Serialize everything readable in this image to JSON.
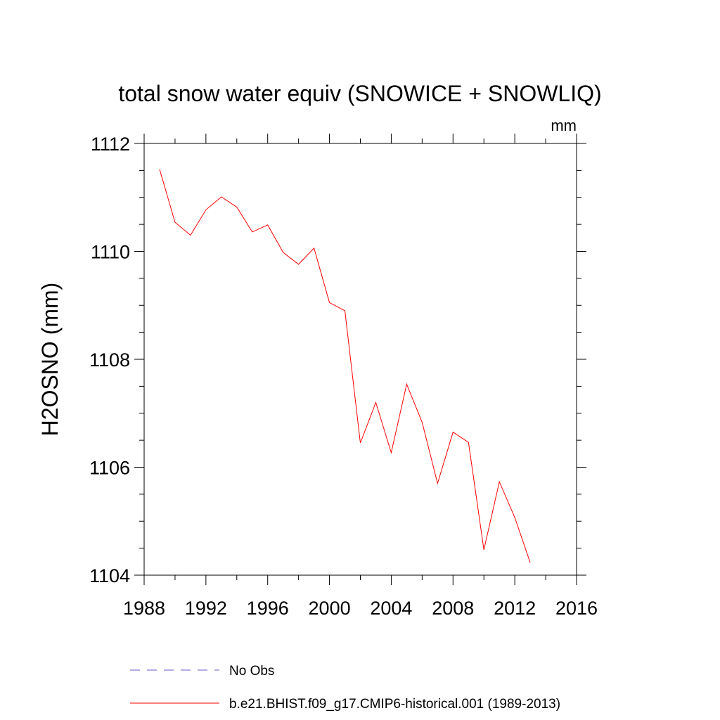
{
  "chart_data": {
    "type": "line",
    "title": "total snow water equiv (SNOWICE + SNOWLIQ)",
    "units_label": "mm",
    "xlabel": "",
    "ylabel": "H2OSNO  (mm)",
    "xlim": [
      1988,
      2016
    ],
    "ylim": [
      1104,
      1112
    ],
    "xticks": [
      1988,
      1992,
      1996,
      2000,
      2004,
      2008,
      2012,
      2016
    ],
    "yticks": [
      1104,
      1106,
      1108,
      1110,
      1112
    ],
    "grid": false,
    "legend_position": "bottom",
    "series": [
      {
        "name": "No Obs",
        "color": "#6a5acd",
        "style": "dashed",
        "x": [],
        "values": []
      },
      {
        "name": "b.e21.BHIST.f09_g17.CMIP6-historical.001 (1989-2013)",
        "color": "#ff0000",
        "style": "solid",
        "x": [
          1989,
          1990,
          1991,
          1992,
          1993,
          1994,
          1995,
          1996,
          1997,
          1998,
          1999,
          2000,
          2001,
          2002,
          2003,
          2004,
          2005,
          2006,
          2007,
          2008,
          2009,
          2010,
          2011,
          2012,
          2013
        ],
        "values": [
          1111.52,
          1110.54,
          1110.3,
          1110.77,
          1111.01,
          1110.82,
          1110.36,
          1110.49,
          1109.98,
          1109.76,
          1110.06,
          1109.05,
          1108.9,
          1106.45,
          1107.2,
          1106.27,
          1107.54,
          1106.83,
          1105.7,
          1106.65,
          1106.46,
          1104.47,
          1105.73,
          1105.07,
          1104.23
        ]
      }
    ]
  }
}
